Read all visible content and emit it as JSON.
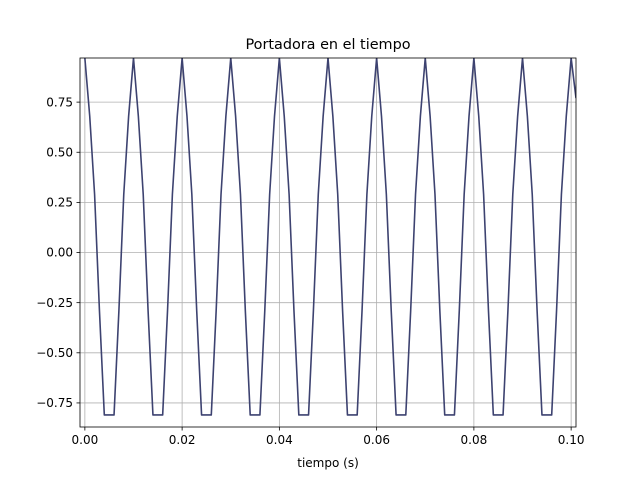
{
  "chart_data": {
    "type": "line",
    "title": "Portadora en el tiempo",
    "xlabel": "tiempo (s)",
    "ylabel": "",
    "xlim": [
      -0.001,
      0.101
    ],
    "ylim": [
      -0.87,
      0.97
    ],
    "xticks": [
      0.0,
      0.02,
      0.04,
      0.06,
      0.08,
      0.1
    ],
    "xtick_labels": [
      "0.00",
      "0.02",
      "0.04",
      "0.06",
      "0.08",
      "0.10"
    ],
    "yticks": [
      -0.75,
      -0.5,
      -0.25,
      0.0,
      0.25,
      0.5,
      0.75
    ],
    "ytick_labels": [
      "−0.75",
      "−0.50",
      "−0.25",
      "0.00",
      "0.25",
      "0.50",
      "0.75"
    ],
    "grid": true,
    "legend": "none",
    "series": [
      {
        "color": "#3d4270",
        "x": [
          0.0,
          0.001,
          0.002,
          0.003,
          0.004,
          0.005,
          0.006,
          0.007,
          0.008,
          0.009,
          0.01,
          0.011,
          0.012,
          0.013,
          0.014,
          0.015,
          0.016,
          0.017,
          0.018,
          0.019,
          0.02,
          0.021,
          0.022,
          0.023,
          0.024,
          0.025,
          0.026,
          0.027,
          0.028,
          0.029,
          0.03,
          0.031,
          0.032,
          0.033,
          0.034,
          0.035,
          0.036,
          0.037,
          0.038,
          0.039,
          0.04,
          0.041,
          0.042,
          0.043,
          0.044,
          0.045,
          0.046,
          0.047,
          0.048,
          0.049,
          0.05,
          0.051,
          0.052,
          0.053,
          0.054,
          0.055,
          0.056,
          0.057,
          0.058,
          0.059,
          0.06,
          0.061,
          0.062,
          0.063,
          0.064,
          0.065,
          0.066,
          0.067,
          0.068,
          0.069,
          0.07,
          0.071,
          0.072,
          0.073,
          0.074,
          0.075,
          0.076,
          0.077,
          0.078,
          0.079,
          0.08,
          0.081,
          0.082,
          0.083,
          0.084,
          0.085,
          0.086,
          0.087,
          0.088,
          0.089,
          0.09,
          0.091,
          0.092,
          0.093,
          0.094,
          0.095,
          0.096,
          0.097,
          0.098,
          0.099,
          0.1,
          0.101
        ],
        "y": [
          0.97,
          0.68,
          0.29,
          -0.29,
          -0.81,
          -0.81,
          -0.81,
          -0.29,
          0.29,
          0.68,
          0.97,
          0.68,
          0.29,
          -0.29,
          -0.81,
          -0.81,
          -0.81,
          -0.29,
          0.29,
          0.68,
          0.97,
          0.68,
          0.29,
          -0.29,
          -0.81,
          -0.81,
          -0.81,
          -0.29,
          0.29,
          0.68,
          0.97,
          0.68,
          0.29,
          -0.29,
          -0.81,
          -0.81,
          -0.81,
          -0.29,
          0.29,
          0.68,
          0.97,
          0.68,
          0.29,
          -0.29,
          -0.81,
          -0.81,
          -0.81,
          -0.29,
          0.29,
          0.68,
          0.97,
          0.68,
          0.29,
          -0.29,
          -0.81,
          -0.81,
          -0.81,
          -0.29,
          0.29,
          0.68,
          0.97,
          0.68,
          0.29,
          -0.29,
          -0.81,
          -0.81,
          -0.81,
          -0.29,
          0.29,
          0.68,
          0.97,
          0.68,
          0.29,
          -0.29,
          -0.81,
          -0.81,
          -0.81,
          -0.29,
          0.29,
          0.68,
          0.97,
          0.68,
          0.29,
          -0.29,
          -0.81,
          -0.81,
          -0.81,
          -0.29,
          0.29,
          0.68,
          0.97,
          0.68,
          0.29,
          -0.29,
          -0.81,
          -0.81,
          -0.81,
          -0.29,
          0.29,
          0.68,
          0.97,
          0.77
        ]
      }
    ]
  }
}
